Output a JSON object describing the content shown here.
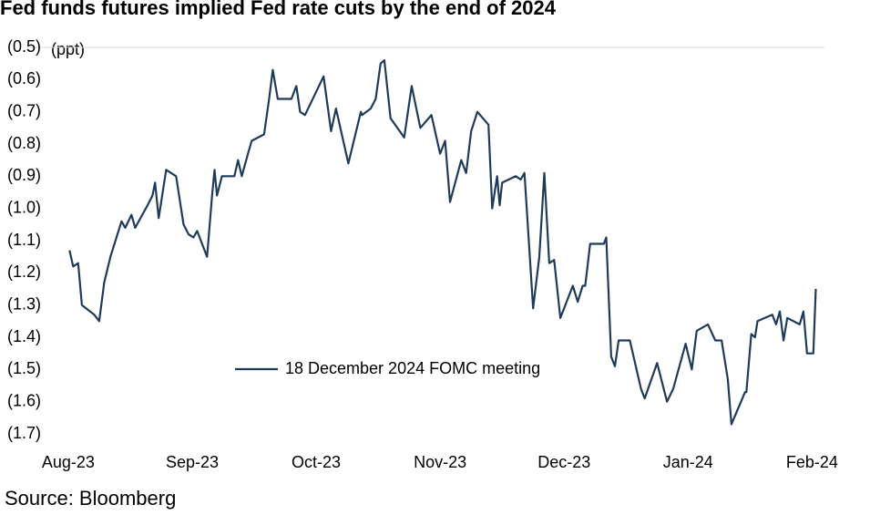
{
  "chart_data": {
    "type": "line",
    "title": "Fed funds futures implied Fed rate cuts by the end of 2024",
    "y_label": "(ppt)",
    "source": "Source: Bloomberg",
    "legend": "center",
    "x": [
      0.01,
      0.04,
      0.08,
      0.11,
      0.21,
      0.25,
      0.29,
      0.34,
      0.43,
      0.46,
      0.51,
      0.54,
      0.64,
      0.68,
      0.7,
      0.73,
      0.79,
      0.87,
      0.93,
      0.97,
      1.01,
      1.04,
      1.12,
      1.16,
      1.18,
      1.2,
      1.24,
      1.34,
      1.37,
      1.4,
      1.45,
      1.48,
      1.58,
      1.62,
      1.65,
      1.69,
      1.8,
      1.84,
      1.87,
      1.91,
      2.06,
      2.12,
      2.16,
      2.26,
      2.36,
      2.37,
      2.44,
      2.48,
      2.52,
      2.55,
      2.6,
      2.71,
      2.77,
      2.84,
      2.93,
      3.0,
      3.04,
      3.08,
      3.17,
      3.21,
      3.25,
      3.3,
      3.39,
      3.42,
      3.46,
      3.48,
      3.5,
      3.61,
      3.65,
      3.68,
      3.75,
      3.8,
      3.84,
      3.88,
      3.92,
      3.97,
      4.07,
      4.11,
      4.15,
      4.17,
      4.21,
      4.32,
      4.34,
      4.38,
      4.41,
      4.44,
      4.53,
      4.62,
      4.65,
      4.75,
      4.83,
      4.88,
      4.98,
      5.03,
      5.07,
      5.16,
      5.22,
      5.27,
      5.32,
      5.35,
      5.46,
      5.47,
      5.51,
      5.54,
      5.56,
      5.68,
      5.71,
      5.74,
      5.77,
      5.8,
      5.9,
      5.93,
      5.96,
      6.01,
      6.03
    ],
    "series": [
      {
        "name": "18 December 2024 FOMC meeting",
        "color": "#1f3b5c",
        "values": [
          -1.13,
          -1.18,
          -1.17,
          -1.3,
          -1.33,
          -1.35,
          -1.23,
          -1.15,
          -1.04,
          -1.06,
          -1.02,
          -1.06,
          -0.99,
          -0.96,
          -0.92,
          -1.03,
          -0.88,
          -0.9,
          -1.05,
          -1.08,
          -1.09,
          -1.07,
          -1.15,
          -0.96,
          -0.88,
          -0.96,
          -0.9,
          -0.9,
          -0.85,
          -0.9,
          -0.83,
          -0.79,
          -0.77,
          -0.66,
          -0.57,
          -0.66,
          -0.66,
          -0.62,
          -0.7,
          -0.71,
          -0.59,
          -0.76,
          -0.69,
          -0.86,
          -0.7,
          -0.71,
          -0.69,
          -0.66,
          -0.55,
          -0.54,
          -0.72,
          -0.78,
          -0.62,
          -0.75,
          -0.71,
          -0.83,
          -0.79,
          -0.98,
          -0.85,
          -0.89,
          -0.76,
          -0.7,
          -0.74,
          -1.0,
          -0.9,
          -0.99,
          -0.92,
          -0.9,
          -0.91,
          -0.89,
          -1.31,
          -1.15,
          -0.89,
          -1.17,
          -1.16,
          -1.34,
          -1.24,
          -1.29,
          -1.24,
          -1.24,
          -1.11,
          -1.11,
          -1.09,
          -1.46,
          -1.49,
          -1.41,
          -1.41,
          -1.56,
          -1.59,
          -1.48,
          -1.6,
          -1.56,
          -1.42,
          -1.5,
          -1.38,
          -1.36,
          -1.41,
          -1.41,
          -1.53,
          -1.67,
          -1.57,
          -1.57,
          -1.39,
          -1.4,
          -1.35,
          -1.33,
          -1.36,
          -1.32,
          -1.41,
          -1.34,
          -1.36,
          -1.32,
          -1.45,
          -1.45,
          -1.25
        ]
      }
    ],
    "xlim": [
      -0.33,
      6.1
    ],
    "xticks": [
      {
        "value": 0,
        "label": "Aug-23"
      },
      {
        "value": 1,
        "label": "Sep-23"
      },
      {
        "value": 2,
        "label": "Oct-23"
      },
      {
        "value": 3,
        "label": "Nov-23"
      },
      {
        "value": 4,
        "label": "Dec-23"
      },
      {
        "value": 5,
        "label": "Jan-24"
      },
      {
        "value": 6,
        "label": "Feb-24"
      }
    ],
    "ylim": [
      -0.5,
      -1.7
    ],
    "yticks": [
      {
        "value": -0.5,
        "label": "(0.5)"
      },
      {
        "value": -0.6,
        "label": "(0.6)"
      },
      {
        "value": -0.7,
        "label": "(0.7)"
      },
      {
        "value": -0.8,
        "label": "(0.8)"
      },
      {
        "value": -0.9,
        "label": "(0.9)"
      },
      {
        "value": -1.0,
        "label": "(1.0)"
      },
      {
        "value": -1.1,
        "label": "(1.1)"
      },
      {
        "value": -1.2,
        "label": "(1.2)"
      },
      {
        "value": -1.3,
        "label": "(1.3)"
      },
      {
        "value": -1.4,
        "label": "(1.4)"
      },
      {
        "value": -1.5,
        "label": "(1.5)"
      },
      {
        "value": -1.6,
        "label": "(1.6)"
      },
      {
        "value": -1.7,
        "label": "(1.7)"
      }
    ],
    "grid": false
  }
}
